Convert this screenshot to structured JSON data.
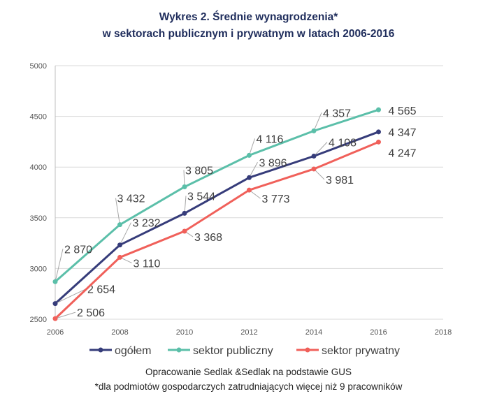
{
  "chart_data": {
    "type": "line",
    "title": "Wykres 2. Średnie wynagrodzenia*",
    "subtitle": "w sektorach publicznym i prywatnym w latach 2006-2016",
    "xlabel": "",
    "ylabel": "",
    "x": [
      2006,
      2008,
      2010,
      2012,
      2014,
      2016
    ],
    "xlim": [
      2006,
      2018
    ],
    "ylim": [
      2500,
      5000
    ],
    "xticks": [
      "2006",
      "2008",
      "2010",
      "2012",
      "2014",
      "2016",
      "2018"
    ],
    "yticks": [
      "2500",
      "3000",
      "3500",
      "4000",
      "4500",
      "5000"
    ],
    "grid": "horizontal",
    "legend_position": "bottom",
    "series": [
      {
        "name": "ogółem",
        "color": "#363c7a",
        "values": [
          2654,
          3232,
          3544,
          3896,
          4108,
          4347
        ],
        "labels": [
          "2 654",
          "3 232",
          "3 544",
          "3 896",
          "4 108",
          "4 347"
        ]
      },
      {
        "name": "sektor publiczny",
        "color": "#5bbfa9",
        "values": [
          2870,
          3432,
          3805,
          4116,
          4357,
          4565
        ],
        "labels": [
          "2 870",
          "3 432",
          "3 805",
          "4 116",
          "4 357",
          "4 565"
        ]
      },
      {
        "name": "sektor prywatny",
        "color": "#f0605a",
        "values": [
          2506,
          3110,
          3368,
          3773,
          3981,
          4247
        ],
        "labels": [
          "2 506",
          "3 110",
          "3 368",
          "3 773",
          "3 981",
          "4 247"
        ]
      }
    ]
  },
  "footer": {
    "source": "Opracowanie Sedlak &Sedlak na podstawie GUS",
    "note": "*dla podmiotów gospodarczych zatrudniających więcej niż 9 pracowników"
  }
}
